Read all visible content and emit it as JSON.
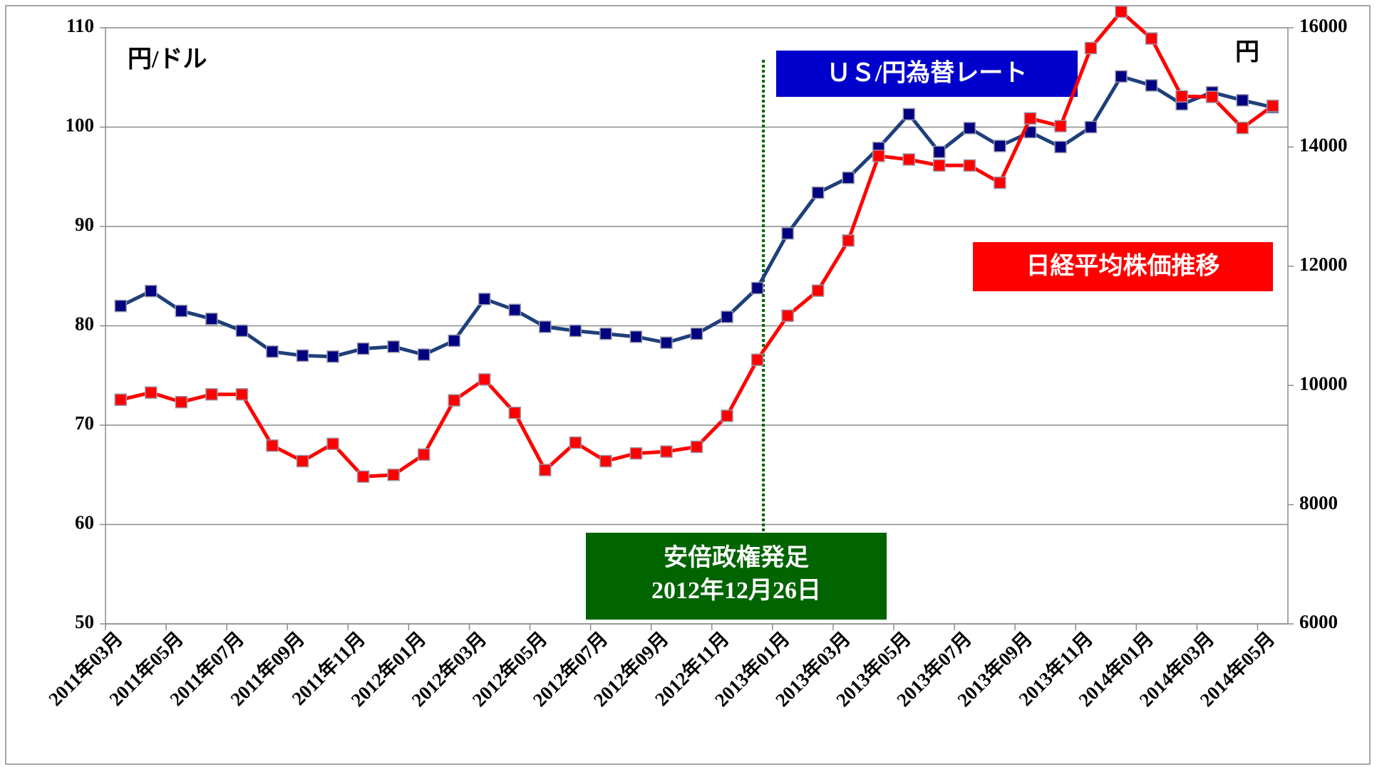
{
  "chart_data": {
    "type": "line",
    "y_label": "円/ドル",
    "y2_label": "円",
    "event_label": [
      "安倍政権発足",
      "2012年12月26日"
    ],
    "categories": [
      "2011年03月",
      null,
      "2011年05月",
      null,
      "2011年07月",
      null,
      "2011年09月",
      null,
      "2011年11月",
      null,
      "2012年01月",
      null,
      "2012年03月",
      null,
      "2012年05月",
      null,
      "2012年07月",
      null,
      "2012年09月",
      null,
      "2012年11月",
      null,
      "2013年01月",
      null,
      "2013年03月",
      null,
      "2013年05月",
      null,
      "2013年07月",
      null,
      "2013年09月",
      null,
      "2013年11月",
      null,
      "2014年01月",
      null,
      "2014年03月",
      null,
      "2014年05月"
    ],
    "series": [
      {
        "name": "ＵＳ/円為替レート",
        "color": "#1f3f7a",
        "marker_color": "#000080",
        "box_color": "#0000cc",
        "axis": "y",
        "values": [
          82.0,
          83.5,
          81.5,
          80.7,
          79.5,
          77.4,
          77.0,
          76.9,
          77.7,
          77.9,
          77.1,
          78.5,
          82.7,
          81.6,
          79.9,
          79.5,
          79.2,
          78.9,
          78.3,
          79.2,
          80.9,
          83.8,
          89.3,
          93.4,
          94.9,
          97.9,
          101.3,
          97.5,
          99.9,
          98.1,
          99.5,
          98.0,
          100.0,
          105.1,
          104.2,
          102.3,
          103.5,
          102.7,
          102.0
        ]
      },
      {
        "name": "日経平均株価推移",
        "color": "#ff0000",
        "marker_color": "#ff0000",
        "box_color": "#ff0000",
        "axis": "y2",
        "values": [
          9760,
          9880,
          9720,
          9850,
          9850,
          8990,
          8730,
          9020,
          8470,
          8500,
          8840,
          9750,
          10100,
          9540,
          8580,
          9040,
          8730,
          8860,
          8890,
          8970,
          9490,
          10430,
          11170,
          11590,
          12430,
          13850,
          13790,
          13690,
          13690,
          13400,
          14480,
          14350,
          15660,
          16270,
          15820,
          14850,
          14840,
          14320,
          14690
        ]
      }
    ],
    "ylim": [
      50,
      110
    ],
    "yticks": [
      50,
      60,
      70,
      80,
      90,
      100,
      110
    ],
    "y2lim": [
      6000,
      16000
    ],
    "y2ticks": [
      6000,
      8000,
      10000,
      12000,
      14000,
      16000
    ],
    "grid": true
  }
}
